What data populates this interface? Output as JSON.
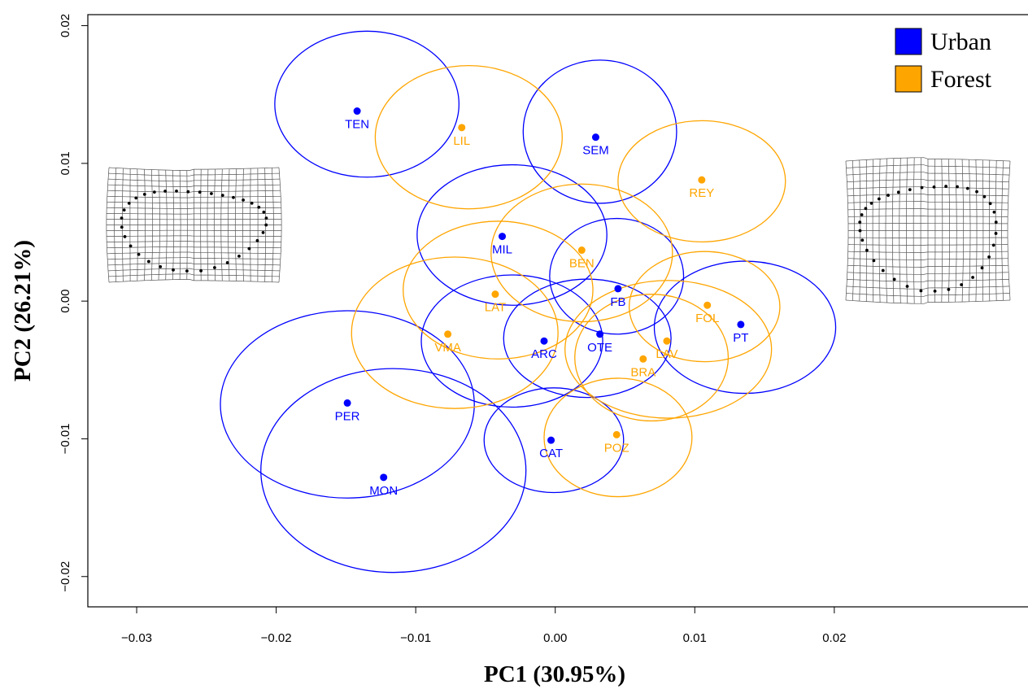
{
  "chart_data": {
    "type": "scatter",
    "xlabel": "PC1 (30.95%)",
    "ylabel": "PC2 (26.21%)",
    "xlim": [
      -0.0335,
      0.034
    ],
    "ylim": [
      -0.0222,
      0.0208
    ],
    "x_ticks": [
      {
        "value": -0.03,
        "label": "−0.03"
      },
      {
        "value": -0.02,
        "label": "−0.02"
      },
      {
        "value": -0.01,
        "label": "−0.01"
      },
      {
        "value": 0.0,
        "label": "0.00"
      },
      {
        "value": 0.01,
        "label": "0.01"
      },
      {
        "value": 0.02,
        "label": "0.02"
      }
    ],
    "y_ticks": [
      {
        "value": -0.02,
        "label": "−0.02"
      },
      {
        "value": -0.01,
        "label": "−0.01"
      },
      {
        "value": 0.0,
        "label": "0.00"
      },
      {
        "value": 0.01,
        "label": "0.01"
      },
      {
        "value": 0.02,
        "label": "0.02"
      }
    ],
    "legend": {
      "position": "top-right",
      "items": [
        {
          "label": "Urban",
          "color": "#0000ff"
        },
        {
          "label": "Forest",
          "color": "#ffa500"
        }
      ]
    },
    "series": [
      {
        "name": "Urban",
        "color": "#0000ff",
        "points": [
          {
            "label": "TEN",
            "x": -0.0142,
            "y": 0.0138,
            "ellipse": {
              "cx": -0.0135,
              "cy": 0.0143,
              "rx": 0.0066,
              "ry": 0.0053
            }
          },
          {
            "label": "SEM",
            "x": 0.0029,
            "y": 0.0119,
            "ellipse": {
              "cx": 0.0032,
              "cy": 0.0123,
              "rx": 0.0055,
              "ry": 0.0052
            }
          },
          {
            "label": "MIL",
            "x": -0.0038,
            "y": 0.0047,
            "ellipse": {
              "cx": -0.0031,
              "cy": 0.0048,
              "rx": 0.0068,
              "ry": 0.0051
            }
          },
          {
            "label": "FB",
            "x": 0.0045,
            "y": 0.0009,
            "ellipse": {
              "cx": 0.0044,
              "cy": 0.0018,
              "rx": 0.0048,
              "ry": 0.0042
            }
          },
          {
            "label": "PT",
            "x": 0.0133,
            "y": -0.0017,
            "ellipse": {
              "cx": 0.0136,
              "cy": -0.0019,
              "rx": 0.0065,
              "ry": 0.0048
            }
          },
          {
            "label": "ARC",
            "x": -0.0008,
            "y": -0.0029,
            "ellipse": {
              "cx": -0.0031,
              "cy": -0.0029,
              "rx": 0.0065,
              "ry": 0.0048
            }
          },
          {
            "label": "OTE",
            "x": 0.0032,
            "y": -0.0024,
            "ellipse": {
              "cx": 0.0023,
              "cy": -0.0027,
              "rx": 0.006,
              "ry": 0.0043
            }
          },
          {
            "label": "PER",
            "x": -0.0149,
            "y": -0.0074,
            "ellipse": {
              "cx": -0.0149,
              "cy": -0.0075,
              "rx": 0.0091,
              "ry": 0.0068
            }
          },
          {
            "label": "MON",
            "x": -0.0123,
            "y": -0.0128,
            "ellipse": {
              "cx": -0.0116,
              "cy": -0.0123,
              "rx": 0.0095,
              "ry": 0.0074
            }
          },
          {
            "label": "CAT",
            "x": -0.0003,
            "y": -0.0101,
            "ellipse": {
              "cx": -0.0001,
              "cy": -0.0101,
              "rx": 0.005,
              "ry": 0.0038
            }
          }
        ]
      },
      {
        "name": "Forest",
        "color": "#ffa500",
        "points": [
          {
            "label": "LIL",
            "x": -0.0067,
            "y": 0.0126,
            "ellipse": {
              "cx": -0.0062,
              "cy": 0.0119,
              "rx": 0.0067,
              "ry": 0.0052
            }
          },
          {
            "label": "REY",
            "x": 0.0105,
            "y": 0.0088,
            "ellipse": {
              "cx": 0.0105,
              "cy": 0.0087,
              "rx": 0.006,
              "ry": 0.0044
            }
          },
          {
            "label": "BEN",
            "x": 0.0019,
            "y": 0.0037,
            "ellipse": {
              "cx": 0.0019,
              "cy": 0.0035,
              "rx": 0.0065,
              "ry": 0.005
            }
          },
          {
            "label": "LAT",
            "x": -0.0043,
            "y": 0.0005,
            "ellipse": {
              "cx": -0.0041,
              "cy": 0.0008,
              "rx": 0.0068,
              "ry": 0.005
            }
          },
          {
            "label": "FOL",
            "x": 0.0109,
            "y": -0.0003,
            "ellipse": {
              "cx": 0.0107,
              "cy": -0.0004,
              "rx": 0.0054,
              "ry": 0.004
            }
          },
          {
            "label": "VMA",
            "x": -0.0077,
            "y": -0.0024,
            "ellipse": {
              "cx": -0.0072,
              "cy": -0.0023,
              "rx": 0.0074,
              "ry": 0.0055
            }
          },
          {
            "label": "LAV",
            "x": 0.008,
            "y": -0.0029,
            "ellipse": {
              "cx": 0.0081,
              "cy": -0.0035,
              "rx": 0.0074,
              "ry": 0.005
            }
          },
          {
            "label": "BRA",
            "x": 0.0063,
            "y": -0.0042,
            "ellipse": {
              "cx": 0.0069,
              "cy": -0.0041,
              "rx": 0.0055,
              "ry": 0.0046
            }
          },
          {
            "label": "POZ",
            "x": 0.0044,
            "y": -0.0097,
            "ellipse": {
              "cx": 0.0045,
              "cy": -0.0099,
              "rx": 0.0053,
              "ry": 0.0043
            }
          }
        ]
      }
    ]
  },
  "deformation_grids": [
    {
      "name": "negative-pc1-shape"
    },
    {
      "name": "positive-pc1-shape"
    }
  ]
}
